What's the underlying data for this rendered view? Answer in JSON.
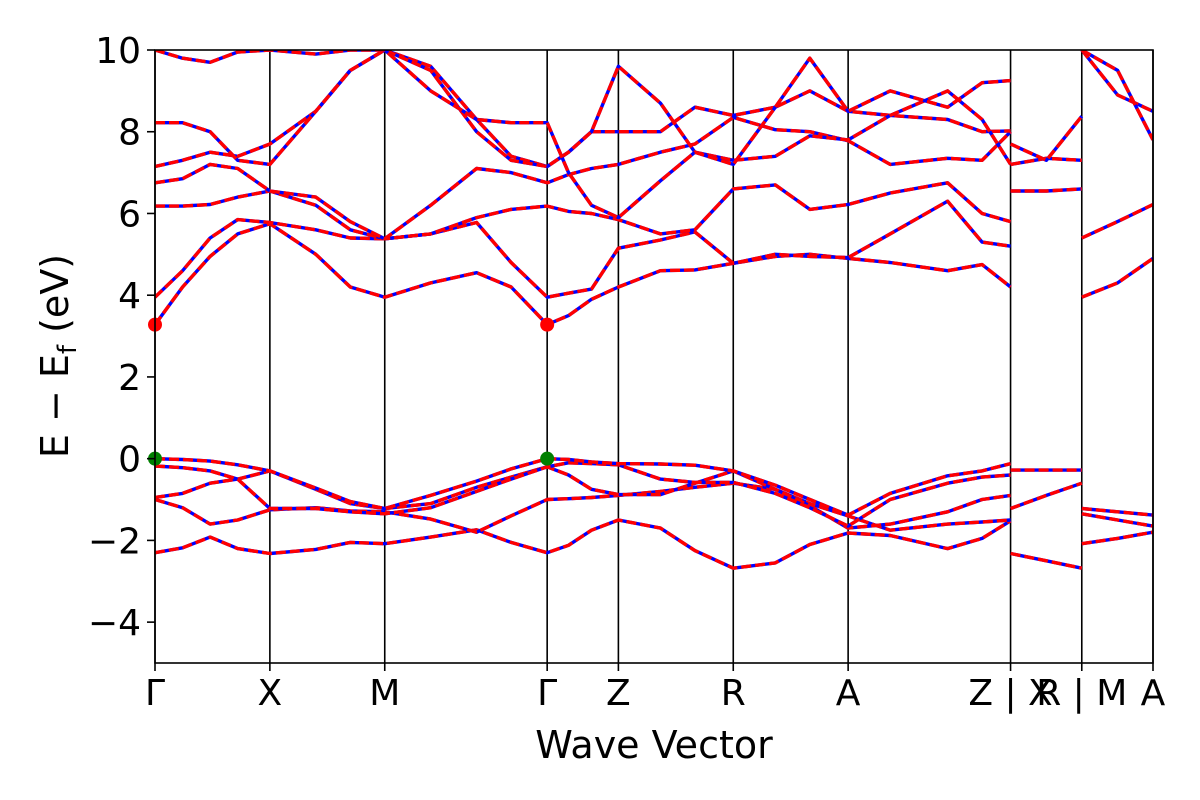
{
  "chart_data": {
    "type": "line",
    "title": "",
    "xlabel": "Wave Vector",
    "ylabel": "E − E_f (eV)",
    "ylabel_parts": {
      "main": "E − E",
      "sub": "f",
      "tail": " (eV)"
    },
    "ylim": [
      -5,
      10
    ],
    "yticks": [
      -4,
      -2,
      0,
      2,
      4,
      6,
      8,
      10
    ],
    "ytick_labels": [
      "−4",
      "−2",
      "0",
      "2",
      "4",
      "6",
      "8",
      "10"
    ],
    "grid": false,
    "legend": "none",
    "k_points": [
      {
        "label": "Γ",
        "x": 0.0
      },
      {
        "label": "X",
        "x": 0.5
      },
      {
        "label": "M",
        "x": 1.0
      },
      {
        "label": "Γ",
        "x": 1.707
      },
      {
        "label": "Z",
        "x": 2.017
      },
      {
        "label": "R",
        "x": 2.517
      },
      {
        "label": "A",
        "x": 3.017
      },
      {
        "label": "Z | X",
        "x": 3.724
      },
      {
        "label": "R | M",
        "x": 4.034
      },
      {
        "label": "A",
        "x": 4.344
      }
    ],
    "segment_breaks": [
      3.724,
      4.034
    ],
    "series_style": [
      {
        "role": "band-solid",
        "color": "#0000ff"
      },
      {
        "role": "band-dashed",
        "color": "#ff0000"
      }
    ],
    "special_points": [
      {
        "kind": "cbm",
        "color": "#ff0000",
        "points": [
          [
            0.0,
            3.28
          ],
          [
            1.707,
            3.28
          ]
        ]
      },
      {
        "kind": "vbm",
        "color": "#008000",
        "points": [
          [
            0.0,
            0.0
          ],
          [
            1.707,
            0.0
          ]
        ]
      }
    ],
    "bands": [
      [
        [
          0,
          -2.3
        ],
        [
          0.12,
          -2.18
        ],
        [
          0.24,
          -1.92
        ],
        [
          0.36,
          -2.2
        ],
        [
          0.5,
          -2.32
        ],
        [
          0.7,
          -2.22
        ],
        [
          0.85,
          -2.05
        ],
        [
          1.0,
          -2.08
        ],
        [
          1.2,
          -1.92
        ],
        [
          1.4,
          -1.74
        ],
        [
          1.55,
          -2.05
        ],
        [
          1.707,
          -2.3
        ],
        [
          1.8,
          -2.12
        ],
        [
          1.9,
          -1.75
        ],
        [
          2.017,
          -1.5
        ],
        [
          2.2,
          -1.7
        ],
        [
          2.35,
          -2.25
        ],
        [
          2.517,
          -2.68
        ],
        [
          2.7,
          -2.55
        ],
        [
          2.85,
          -2.1
        ],
        [
          3.017,
          -1.82
        ],
        [
          3.2,
          -1.88
        ],
        [
          3.45,
          -2.2
        ],
        [
          3.6,
          -1.95
        ],
        [
          3.724,
          -1.52
        ]
      ],
      [
        [
          0,
          -1.0
        ],
        [
          0.12,
          -1.2
        ],
        [
          0.24,
          -1.6
        ],
        [
          0.36,
          -1.5
        ],
        [
          0.5,
          -1.25
        ],
        [
          0.7,
          -1.2
        ],
        [
          0.85,
          -1.28
        ],
        [
          1.0,
          -1.3
        ],
        [
          1.2,
          -1.48
        ],
        [
          1.4,
          -1.8
        ],
        [
          1.55,
          -1.4
        ],
        [
          1.707,
          -1.0
        ],
        [
          1.8,
          -0.98
        ],
        [
          1.9,
          -0.95
        ],
        [
          2.017,
          -0.9
        ],
        [
          2.2,
          -0.8
        ],
        [
          2.35,
          -0.7
        ],
        [
          2.517,
          -0.6
        ],
        [
          2.7,
          -0.75
        ],
        [
          2.85,
          -1.1
        ],
        [
          3.017,
          -1.4
        ],
        [
          3.2,
          -1.75
        ],
        [
          3.45,
          -1.6
        ],
        [
          3.6,
          -1.55
        ],
        [
          3.724,
          -1.5
        ]
      ],
      [
        [
          0,
          -0.95
        ],
        [
          0.12,
          -0.85
        ],
        [
          0.24,
          -0.6
        ],
        [
          0.36,
          -0.5
        ],
        [
          0.5,
          -0.3
        ],
        [
          0.7,
          -0.75
        ],
        [
          0.85,
          -1.1
        ],
        [
          1.0,
          -1.22
        ],
        [
          1.2,
          -1.1
        ],
        [
          1.4,
          -0.7
        ],
        [
          1.55,
          -0.45
        ],
        [
          1.707,
          -0.2
        ],
        [
          1.8,
          -0.4
        ],
        [
          1.9,
          -0.75
        ],
        [
          2.017,
          -0.88
        ],
        [
          2.2,
          -0.88
        ],
        [
          2.35,
          -0.6
        ],
        [
          2.517,
          -0.3
        ],
        [
          2.7,
          -0.75
        ],
        [
          2.85,
          -1.15
        ],
        [
          3.017,
          -1.7
        ],
        [
          3.2,
          -1.6
        ],
        [
          3.45,
          -1.3
        ],
        [
          3.6,
          -1.0
        ],
        [
          3.724,
          -0.9
        ]
      ],
      [
        [
          0,
          -0.18
        ],
        [
          0.12,
          -0.22
        ],
        [
          0.24,
          -0.3
        ],
        [
          0.36,
          -0.5
        ],
        [
          0.5,
          -1.22
        ],
        [
          0.7,
          -1.22
        ],
        [
          0.85,
          -1.3
        ],
        [
          1.0,
          -1.35
        ],
        [
          1.2,
          -1.2
        ],
        [
          1.4,
          -0.8
        ],
        [
          1.55,
          -0.5
        ],
        [
          1.707,
          -0.2
        ],
        [
          1.8,
          -0.1
        ],
        [
          1.9,
          -0.12
        ],
        [
          2.017,
          -0.15
        ],
        [
          2.2,
          -0.5
        ],
        [
          2.35,
          -0.58
        ],
        [
          2.517,
          -0.58
        ],
        [
          2.7,
          -0.85
        ],
        [
          2.85,
          -1.2
        ],
        [
          3.017,
          -1.65
        ],
        [
          3.2,
          -1.0
        ],
        [
          3.45,
          -0.6
        ],
        [
          3.6,
          -0.45
        ],
        [
          3.724,
          -0.4
        ]
      ],
      [
        [
          0,
          0.0
        ],
        [
          0.12,
          -0.02
        ],
        [
          0.24,
          -0.06
        ],
        [
          0.36,
          -0.15
        ],
        [
          0.5,
          -0.3
        ],
        [
          0.7,
          -0.72
        ],
        [
          0.85,
          -1.05
        ],
        [
          1.0,
          -1.22
        ],
        [
          1.2,
          -0.9
        ],
        [
          1.4,
          -0.55
        ],
        [
          1.55,
          -0.25
        ],
        [
          1.707,
          0.0
        ],
        [
          1.8,
          -0.02
        ],
        [
          1.9,
          -0.08
        ],
        [
          2.017,
          -0.12
        ],
        [
          2.2,
          -0.13
        ],
        [
          2.35,
          -0.16
        ],
        [
          2.517,
          -0.3
        ],
        [
          2.7,
          -0.65
        ],
        [
          2.85,
          -1.0
        ],
        [
          3.017,
          -1.38
        ],
        [
          3.2,
          -0.85
        ],
        [
          3.45,
          -0.42
        ],
        [
          3.6,
          -0.3
        ],
        [
          3.724,
          -0.12
        ]
      ],
      [
        [
          0,
          3.28
        ],
        [
          0.12,
          4.2
        ],
        [
          0.24,
          4.95
        ],
        [
          0.36,
          5.5
        ],
        [
          0.5,
          5.75
        ],
        [
          0.7,
          5.0
        ],
        [
          0.85,
          4.2
        ],
        [
          1.0,
          3.95
        ],
        [
          1.2,
          4.3
        ],
        [
          1.4,
          4.55
        ],
        [
          1.55,
          4.2
        ],
        [
          1.707,
          3.28
        ],
        [
          1.8,
          3.5
        ],
        [
          1.9,
          3.9
        ],
        [
          2.017,
          4.2
        ],
        [
          2.2,
          4.6
        ],
        [
          2.35,
          4.62
        ],
        [
          2.517,
          4.78
        ],
        [
          2.7,
          4.95
        ],
        [
          2.85,
          5.0
        ],
        [
          3.017,
          4.9
        ],
        [
          3.2,
          4.8
        ],
        [
          3.45,
          4.6
        ],
        [
          3.6,
          4.75
        ],
        [
          3.724,
          4.2
        ]
      ],
      [
        [
          0,
          3.95
        ],
        [
          0.12,
          4.6
        ],
        [
          0.24,
          5.4
        ],
        [
          0.36,
          5.85
        ],
        [
          0.5,
          5.78
        ],
        [
          0.7,
          5.6
        ],
        [
          0.85,
          5.4
        ],
        [
          1.0,
          5.38
        ],
        [
          1.2,
          5.5
        ],
        [
          1.4,
          5.78
        ],
        [
          1.55,
          4.8
        ],
        [
          1.707,
          3.95
        ],
        [
          1.8,
          4.05
        ],
        [
          1.9,
          4.15
        ],
        [
          2.017,
          5.15
        ],
        [
          2.2,
          5.35
        ],
        [
          2.35,
          5.55
        ],
        [
          2.517,
          4.78
        ],
        [
          2.7,
          5.0
        ],
        [
          2.85,
          4.95
        ],
        [
          3.017,
          4.92
        ],
        [
          3.2,
          5.5
        ],
        [
          3.45,
          6.3
        ],
        [
          3.6,
          5.3
        ],
        [
          3.724,
          5.2
        ]
      ],
      [
        [
          0,
          6.18
        ],
        [
          0.12,
          6.18
        ],
        [
          0.24,
          6.22
        ],
        [
          0.36,
          6.4
        ],
        [
          0.5,
          6.55
        ],
        [
          0.7,
          6.2
        ],
        [
          0.85,
          5.6
        ],
        [
          1.0,
          5.38
        ],
        [
          1.2,
          5.5
        ],
        [
          1.4,
          5.9
        ],
        [
          1.55,
          6.1
        ],
        [
          1.707,
          6.18
        ],
        [
          1.8,
          6.05
        ],
        [
          1.9,
          6.0
        ],
        [
          2.017,
          5.85
        ],
        [
          2.2,
          5.5
        ],
        [
          2.35,
          5.6
        ],
        [
          2.517,
          6.6
        ],
        [
          2.7,
          6.7
        ],
        [
          2.85,
          6.1
        ],
        [
          3.017,
          6.22
        ],
        [
          3.2,
          6.5
        ],
        [
          3.45,
          6.75
        ],
        [
          3.6,
          6.0
        ],
        [
          3.724,
          5.8
        ]
      ],
      [
        [
          0,
          6.75
        ],
        [
          0.12,
          6.85
        ],
        [
          0.24,
          7.2
        ],
        [
          0.36,
          7.1
        ],
        [
          0.5,
          6.55
        ],
        [
          0.7,
          6.4
        ],
        [
          0.85,
          5.8
        ],
        [
          1.0,
          5.38
        ],
        [
          1.2,
          6.2
        ],
        [
          1.4,
          7.1
        ],
        [
          1.55,
          7.0
        ],
        [
          1.707,
          6.75
        ],
        [
          1.8,
          6.95
        ],
        [
          1.9,
          7.1
        ],
        [
          2.017,
          7.2
        ],
        [
          2.2,
          7.5
        ],
        [
          2.35,
          7.7
        ],
        [
          2.517,
          8.35
        ],
        [
          2.7,
          8.05
        ],
        [
          2.85,
          8.0
        ],
        [
          3.017,
          7.78
        ],
        [
          3.2,
          7.2
        ],
        [
          3.45,
          7.35
        ],
        [
          3.6,
          7.3
        ],
        [
          3.724,
          8.0
        ]
      ],
      [
        [
          0,
          7.15
        ],
        [
          0.12,
          7.3
        ],
        [
          0.24,
          7.5
        ],
        [
          0.36,
          7.4
        ],
        [
          0.5,
          7.7
        ],
        [
          0.7,
          8.5
        ],
        [
          0.85,
          9.5
        ],
        [
          1.0,
          10.0
        ],
        [
          1.2,
          9.6
        ],
        [
          1.4,
          8.3
        ],
        [
          1.55,
          7.4
        ],
        [
          1.707,
          7.15
        ],
        [
          1.8,
          7.5
        ],
        [
          1.9,
          8.0
        ],
        [
          2.017,
          8.0
        ],
        [
          2.2,
          8.0
        ],
        [
          2.35,
          8.6
        ],
        [
          2.517,
          8.4
        ],
        [
          2.7,
          8.6
        ],
        [
          2.85,
          9.0
        ],
        [
          3.017,
          8.5
        ],
        [
          3.2,
          8.4
        ],
        [
          3.45,
          8.3
        ],
        [
          3.6,
          8.0
        ],
        [
          3.724,
          8.02
        ]
      ],
      [
        [
          0,
          8.22
        ],
        [
          0.12,
          8.22
        ],
        [
          0.24,
          8.0
        ],
        [
          0.36,
          7.3
        ],
        [
          0.5,
          7.2
        ],
        [
          0.7,
          8.5
        ],
        [
          0.85,
          9.5
        ],
        [
          1.0,
          10.0
        ],
        [
          1.2,
          9.5
        ],
        [
          1.4,
          8.0
        ],
        [
          1.55,
          7.3
        ],
        [
          1.707,
          7.15
        ],
        [
          1.8,
          7.5
        ],
        [
          1.9,
          8.0
        ],
        [
          2.017,
          9.6
        ],
        [
          2.2,
          8.7
        ],
        [
          2.35,
          7.5
        ],
        [
          2.517,
          7.3
        ],
        [
          2.7,
          7.4
        ],
        [
          2.85,
          7.9
        ],
        [
          3.017,
          7.8
        ],
        [
          3.2,
          8.4
        ],
        [
          3.45,
          9.0
        ],
        [
          3.6,
          8.3
        ],
        [
          3.724,
          7.2
        ]
      ],
      [
        [
          0,
          10.0
        ],
        [
          0.12,
          9.8
        ],
        [
          0.24,
          9.7
        ],
        [
          0.36,
          9.95
        ],
        [
          0.5,
          10.0
        ],
        [
          0.7,
          9.9
        ],
        [
          0.85,
          10.0
        ],
        [
          1.0,
          10.0
        ],
        [
          1.2,
          9.0
        ],
        [
          1.4,
          8.3
        ],
        [
          1.55,
          8.22
        ],
        [
          1.707,
          8.22
        ],
        [
          1.8,
          7.0
        ],
        [
          1.9,
          6.2
        ],
        [
          2.017,
          5.9
        ],
        [
          2.2,
          6.8
        ],
        [
          2.35,
          7.5
        ],
        [
          2.517,
          7.2
        ],
        [
          2.7,
          8.6
        ],
        [
          2.85,
          9.8
        ],
        [
          3.017,
          8.5
        ],
        [
          3.2,
          9.0
        ],
        [
          3.45,
          8.6
        ],
        [
          3.6,
          9.2
        ],
        [
          3.724,
          9.25
        ]
      ],
      [
        [
          3.724,
          7.2
        ],
        [
          3.88,
          7.35
        ],
        [
          4.034,
          7.3
        ]
      ],
      [
        [
          3.724,
          6.55
        ],
        [
          3.88,
          6.55
        ],
        [
          4.034,
          6.6
        ]
      ],
      [
        [
          3.724,
          7.7
        ],
        [
          3.88,
          7.3
        ],
        [
          4.034,
          8.38
        ]
      ],
      [
        [
          3.724,
          -0.28
        ],
        [
          3.88,
          -0.28
        ],
        [
          4.034,
          -0.28
        ]
      ],
      [
        [
          3.724,
          -1.22
        ],
        [
          3.88,
          -0.9
        ],
        [
          4.034,
          -0.6
        ]
      ],
      [
        [
          3.724,
          -2.32
        ],
        [
          3.88,
          -2.5
        ],
        [
          4.034,
          -2.68
        ]
      ],
      [
        [
          4.034,
          3.95
        ],
        [
          4.19,
          4.3
        ],
        [
          4.344,
          4.9
        ]
      ],
      [
        [
          4.034,
          5.4
        ],
        [
          4.19,
          5.8
        ],
        [
          4.344,
          6.22
        ]
      ],
      [
        [
          4.034,
          10.0
        ],
        [
          4.19,
          8.9
        ],
        [
          4.344,
          8.5
        ]
      ],
      [
        [
          4.034,
          10.0
        ],
        [
          4.19,
          9.5
        ],
        [
          4.344,
          7.8
        ]
      ],
      [
        [
          4.034,
          -1.22
        ],
        [
          4.19,
          -1.3
        ],
        [
          4.344,
          -1.38
        ]
      ],
      [
        [
          4.034,
          -1.35
        ],
        [
          4.19,
          -1.5
        ],
        [
          4.344,
          -1.65
        ]
      ],
      [
        [
          4.034,
          -2.08
        ],
        [
          4.19,
          -1.95
        ],
        [
          4.344,
          -1.8
        ]
      ]
    ]
  }
}
